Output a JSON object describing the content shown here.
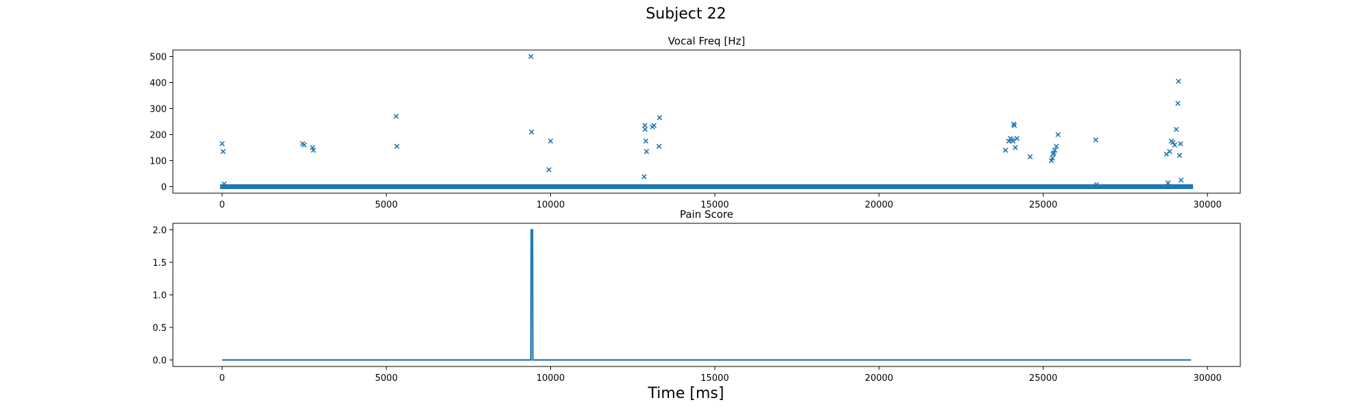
{
  "figure": {
    "suptitle": "Subject 22",
    "xlabel": "Time [ms]"
  },
  "chart_data": [
    {
      "type": "scatter",
      "title": "Vocal Freq [Hz]",
      "xlabel": "",
      "ylabel": "",
      "marker": "x",
      "color": "#1f77b4",
      "xlim": [
        -1500,
        31000
      ],
      "ylim": [
        -25,
        525
      ],
      "xticks": [
        0,
        5000,
        10000,
        15000,
        20000,
        25000,
        30000
      ],
      "yticks": [
        0,
        100,
        200,
        300,
        400,
        500
      ],
      "baseline": {
        "y": 0,
        "x_start": 0,
        "x_end": 29500,
        "note": "dense x-markers along y=0 across whole recording"
      },
      "x": [
        0,
        30,
        60,
        2450,
        2500,
        2750,
        2780,
        5300,
        5320,
        9400,
        9420,
        9950,
        10000,
        12850,
        12870,
        12880,
        12900,
        12920,
        13100,
        13150,
        13300,
        13320,
        23850,
        23950,
        24000,
        24050,
        24080,
        24100,
        24120,
        24150,
        24200,
        24600,
        25250,
        25280,
        25300,
        25320,
        25350,
        25400,
        25450,
        26600,
        26620,
        28750,
        28800,
        28850,
        28900,
        28950,
        29000,
        29050,
        29100,
        29120,
        29150,
        29180,
        29200
      ],
      "y": [
        165,
        135,
        10,
        165,
        160,
        150,
        140,
        270,
        155,
        500,
        210,
        65,
        175,
        38,
        235,
        220,
        175,
        135,
        230,
        235,
        155,
        265,
        140,
        175,
        185,
        180,
        175,
        240,
        235,
        150,
        185,
        115,
        100,
        110,
        125,
        130,
        140,
        155,
        200,
        180,
        8,
        125,
        15,
        135,
        175,
        170,
        160,
        220,
        320,
        405,
        120,
        165,
        25
      ]
    },
    {
      "type": "line",
      "title": "Pain Score",
      "xlabel": "Time [ms]",
      "ylabel": "",
      "color": "#1f77b4",
      "xlim": [
        -1500,
        31000
      ],
      "ylim": [
        -0.1,
        2.1
      ],
      "xticks": [
        0,
        5000,
        10000,
        15000,
        20000,
        25000,
        30000
      ],
      "yticks": [
        0.0,
        0.5,
        1.0,
        1.5,
        2.0
      ],
      "ytick_labels": [
        "0.0",
        "0.5",
        "1.0",
        "1.5",
        "2.0"
      ],
      "x": [
        0,
        9400,
        9410,
        9450,
        9460,
        29500
      ],
      "y": [
        0,
        0,
        2,
        2,
        0,
        0
      ]
    }
  ]
}
